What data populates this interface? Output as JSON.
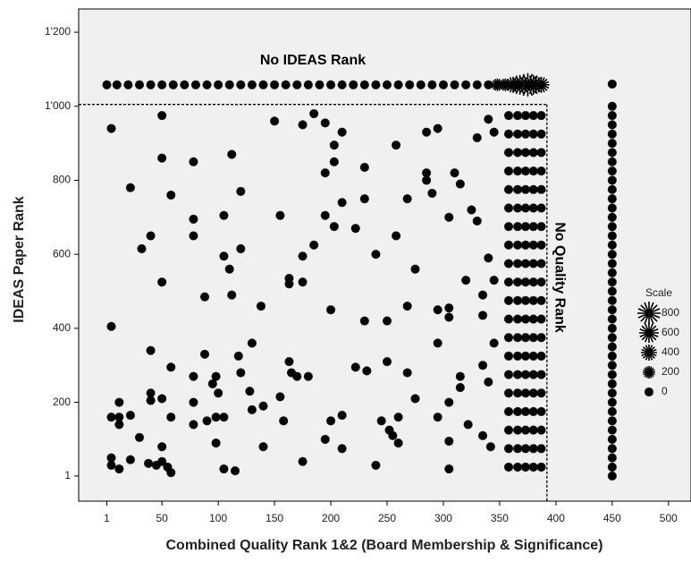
{
  "chart_data": {
    "type": "scatter",
    "x_label": "Combined Quality Rank 1&2 (Board Membership & Significance)",
    "y_label": "IDEAS Paper Rank",
    "annotations": [
      "No IDEAS Rank",
      "No Quality Rank"
    ],
    "xlim": [
      -24,
      520
    ],
    "ylim": [
      -67,
      1263
    ],
    "xticks": [
      1,
      50,
      100,
      150,
      200,
      250,
      300,
      350,
      400,
      450,
      500
    ],
    "yticks": [
      1,
      200,
      400,
      600,
      800,
      {
        "value": 1000,
        "label": "1'000"
      },
      {
        "value": 1200,
        "label": "1'200"
      }
    ],
    "ref_lines": {
      "x": 392,
      "y": 1005
    },
    "color": "#000000",
    "background": "#f0f0f0",
    "legend": {
      "title": "Scale",
      "sizes": [
        800,
        600,
        400,
        200,
        0
      ],
      "position": "right"
    },
    "series": [
      {
        "size": 0,
        "x": [
          5,
          5,
          5,
          5,
          5,
          12,
          12,
          12,
          12,
          22,
          22,
          22,
          30,
          32,
          38,
          40,
          40,
          40,
          40,
          45,
          50,
          50,
          50,
          50,
          50,
          50,
          55,
          58,
          58,
          58,
          58,
          78,
          78,
          78,
          78,
          78,
          78,
          88,
          88,
          90,
          95,
          98,
          98,
          98,
          100,
          105,
          105,
          105,
          105,
          110,
          112,
          112,
          115,
          118,
          120,
          120,
          120,
          128,
          130,
          130,
          138,
          140,
          140,
          150,
          155,
          155,
          158,
          163,
          163,
          163,
          165,
          170,
          175,
          175,
          175,
          175,
          180,
          185,
          185,
          195,
          195,
          195,
          195,
          200,
          200,
          203,
          203,
          203,
          210,
          210,
          210,
          210,
          222,
          222,
          230,
          230,
          230,
          232,
          240,
          240,
          245,
          250,
          250,
          252,
          255,
          258,
          258,
          260,
          260,
          268,
          268,
          268,
          275,
          275,
          285,
          285,
          285,
          290,
          295,
          295,
          295,
          295,
          305,
          305,
          305,
          305,
          305,
          305,
          310,
          315,
          315,
          315,
          320,
          322,
          325,
          330,
          330,
          335,
          335,
          335,
          335,
          340,
          340,
          340,
          342,
          345,
          345,
          345
        ],
        "values": [
          940,
          405,
          160,
          50,
          30,
          200,
          140,
          160,
          20,
          780,
          165,
          45,
          105,
          615,
          35,
          650,
          340,
          225,
          205,
          30,
          975,
          860,
          525,
          210,
          80,
          40,
          25,
          760,
          295,
          160,
          10,
          850,
          695,
          650,
          270,
          200,
          140,
          485,
          330,
          150,
          250,
          270,
          160,
          90,
          225,
          705,
          595,
          160,
          20,
          560,
          870,
          490,
          15,
          325,
          770,
          615,
          280,
          230,
          360,
          180,
          460,
          190,
          80,
          960,
          705,
          215,
          150,
          535,
          520,
          310,
          280,
          270,
          950,
          595,
          525,
          40,
          270,
          625,
          980,
          705,
          955,
          820,
          100,
          150,
          450,
          895,
          850,
          675,
          930,
          740,
          165,
          75,
          670,
          295,
          835,
          750,
          420,
          285,
          600,
          30,
          150,
          420,
          310,
          125,
          110,
          895,
          650,
          90,
          160,
          750,
          460,
          280,
          560,
          210,
          930,
          820,
          800,
          765,
          450,
          360,
          160,
          940,
          700,
          455,
          430,
          200,
          95,
          20,
          820,
          790,
          270,
          240,
          530,
          140,
          720,
          690,
          915,
          490,
          435,
          300,
          110,
          965,
          590,
          255,
          80,
          930,
          530,
          360
        ]
      },
      {
        "size": 0,
        "x": 358,
        "values": [
          25,
          75,
          125,
          175,
          225,
          275,
          325,
          375,
          425,
          475,
          525,
          575,
          625,
          675,
          725,
          775,
          825,
          875,
          925,
          975
        ]
      },
      {
        "size": 0,
        "x": 366,
        "values": [
          25,
          75,
          125,
          175,
          225,
          275,
          325,
          375,
          425,
          475,
          525,
          575,
          625,
          675,
          725,
          775,
          825,
          875,
          925,
          975
        ]
      },
      {
        "size": 0,
        "x": 373,
        "values": [
          25,
          75,
          125,
          175,
          225,
          275,
          325,
          375,
          425,
          475,
          525,
          575,
          625,
          675,
          725,
          775,
          825,
          875,
          925,
          975
        ]
      },
      {
        "size": 0,
        "x": 380,
        "values": [
          25,
          75,
          125,
          175,
          225,
          275,
          325,
          375,
          425,
          475,
          525,
          575,
          625,
          675,
          725,
          775,
          825,
          875,
          925,
          975
        ]
      },
      {
        "size": 0,
        "x": 387,
        "values": [
          25,
          75,
          125,
          175,
          225,
          275,
          325,
          375,
          425,
          475,
          525,
          575,
          625,
          675,
          725,
          775,
          825,
          875,
          925,
          975
        ]
      },
      {
        "size": 0,
        "x": 450,
        "values": [
          1,
          25,
          50,
          75,
          100,
          125,
          150,
          175,
          200,
          225,
          250,
          275,
          300,
          325,
          350,
          375,
          400,
          425,
          450,
          475,
          500,
          525,
          550,
          575,
          600,
          625,
          650,
          675,
          700,
          725,
          750,
          775,
          800,
          825,
          850,
          875,
          900,
          925,
          950,
          975,
          1000
        ]
      },
      {
        "values": 1058,
        "x": [
          1,
          10,
          20,
          30,
          40,
          50,
          60,
          70,
          80,
          90,
          100,
          110,
          120,
          130,
          140,
          150,
          160,
          170,
          180,
          190,
          200,
          210,
          220,
          230,
          240,
          250,
          260,
          270,
          280,
          290,
          300,
          310,
          320,
          330,
          340,
          348,
          355,
          362,
          368,
          375,
          380,
          387
        ],
        "sizes": [
          0,
          0,
          0,
          0,
          0,
          0,
          0,
          0,
          0,
          0,
          0,
          0,
          0,
          0,
          0,
          0,
          0,
          0,
          0,
          0,
          0,
          0,
          0,
          0,
          0,
          0,
          0,
          0,
          0,
          0,
          0,
          0,
          0,
          0,
          0,
          200,
          200,
          400,
          600,
          800,
          600,
          400
        ]
      },
      {
        "size": 0,
        "x": 450,
        "values": [
          1060
        ]
      }
    ]
  }
}
